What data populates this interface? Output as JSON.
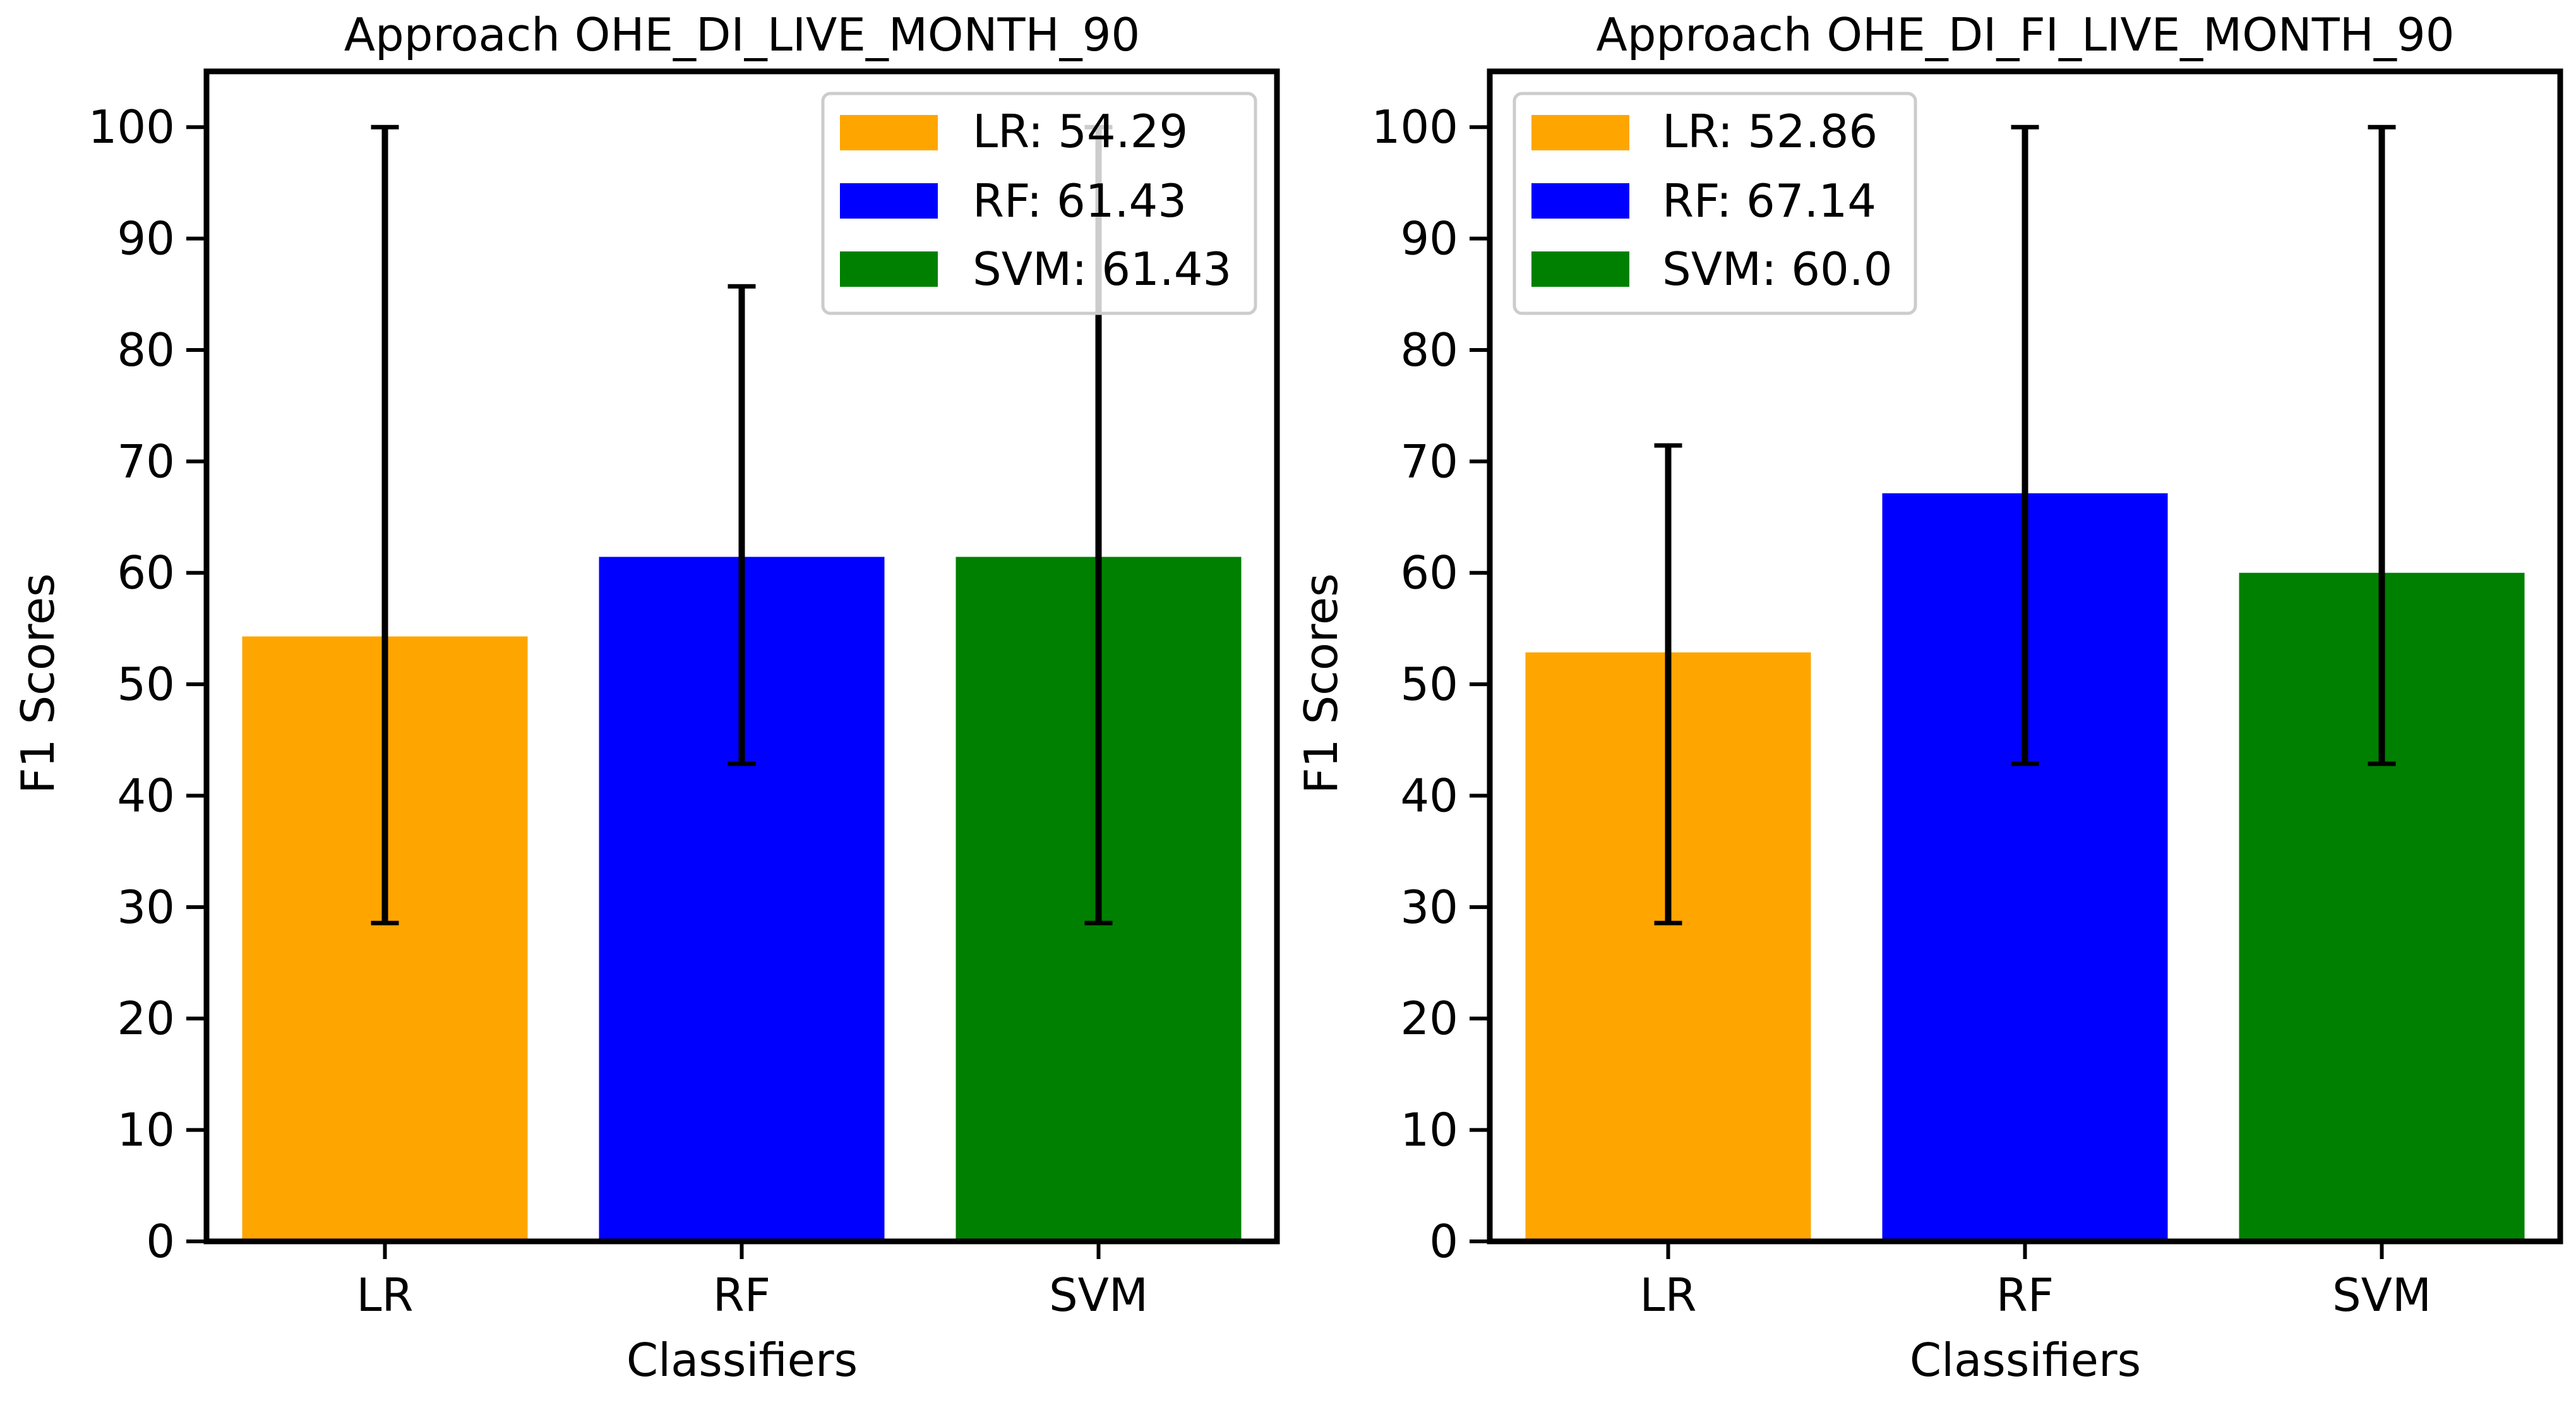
{
  "chart_data": [
    {
      "type": "bar",
      "title": "Approach OHE_DI_LIVE_MONTH_90",
      "xlabel": "Classifiers",
      "ylabel": "F1 Scores",
      "categories": [
        "LR",
        "RF",
        "SVM"
      ],
      "values": [
        54.29,
        61.43,
        61.43
      ],
      "error_low": [
        28.57,
        42.86,
        28.57
      ],
      "error_high": [
        100,
        85.71,
        100
      ],
      "colors": [
        "#FFA500",
        "#0000FF",
        "#008000"
      ],
      "ylim": [
        0,
        105
      ],
      "yticks": [
        0,
        10,
        20,
        30,
        40,
        50,
        60,
        70,
        80,
        90,
        100
      ],
      "grid": false,
      "legend_position": "top-right",
      "legend": [
        "LR: 54.29",
        "RF: 61.43",
        "SVM: 61.43"
      ]
    },
    {
      "type": "bar",
      "title": "Approach OHE_DI_FI_LIVE_MONTH_90",
      "xlabel": "Classifiers",
      "ylabel": "F1 Scores",
      "categories": [
        "LR",
        "RF",
        "SVM"
      ],
      "values": [
        52.86,
        67.14,
        60.0
      ],
      "error_low": [
        28.57,
        42.86,
        42.86
      ],
      "error_high": [
        71.43,
        100,
        100
      ],
      "colors": [
        "#FFA500",
        "#0000FF",
        "#008000"
      ],
      "ylim": [
        0,
        105
      ],
      "yticks": [
        0,
        10,
        20,
        30,
        40,
        50,
        60,
        70,
        80,
        90,
        100
      ],
      "grid": false,
      "legend_position": "top-left",
      "legend": [
        "LR: 52.86",
        "RF: 67.14",
        "SVM: 60.0"
      ]
    }
  ]
}
